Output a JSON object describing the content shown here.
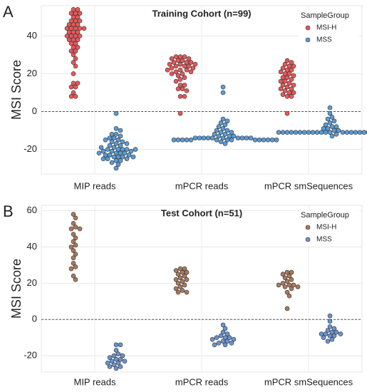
{
  "chart_data": [
    {
      "type": "swarm",
      "panel": "A",
      "title": "Training Cohort (n=99)",
      "y_label": "MSI Score",
      "legend_title": "SampleGroup",
      "categories": [
        "MIP reads",
        "mPCR reads",
        "mPCR smSequences"
      ],
      "ylim": [
        -33,
        56
      ],
      "yticks": [
        -20,
        0,
        20,
        40
      ],
      "grid": true,
      "reference_line": 0,
      "legend": "top-right",
      "series": [
        {
          "name": "MSI-H",
          "color": "#e8575a",
          "values": [
            [
              54,
              54,
              52,
              52,
              52,
              50,
              50,
              48,
              48,
              48,
              46,
              46,
              46,
              44,
              44,
              44,
              44,
              44,
              42,
              42,
              42,
              40,
              40,
              40,
              40,
              38,
              38,
              38,
              36,
              36,
              34,
              34,
              32,
              32,
              30,
              28,
              26,
              24,
              20,
              15,
              15,
              13,
              13,
              10,
              8,
              8
            ],
            [
              29,
              29,
              29,
              28,
              28,
              27,
              27,
              26,
              26,
              26,
              25,
              25,
              25,
              24,
              24,
              24,
              23,
              23,
              22,
              22,
              22,
              21,
              21,
              20,
              20,
              19,
              18,
              17,
              16,
              14,
              14,
              12,
              12,
              11,
              8,
              8,
              -1
            ],
            [
              27,
              26,
              25,
              24,
              24,
              23,
              22,
              22,
              21,
              20,
              20,
              19,
              18,
              18,
              17,
              16,
              16,
              15,
              14,
              14,
              13,
              12,
              12,
              11,
              10,
              10,
              9,
              8,
              8,
              -1
            ]
          ]
        },
        {
          "name": "MSS",
          "color": "#5b9bd5",
          "values": [
            [
              -1,
              -9,
              -10,
              -12,
              -12,
              -13,
              -14,
              -14,
              -15,
              -16,
              -16,
              -17,
              -18,
              -18,
              -19,
              -20,
              -20,
              -20,
              -20,
              -21,
              -21,
              -22,
              -22,
              -22,
              -23,
              -23,
              -24,
              -24,
              -24,
              -25,
              -25,
              -26,
              -26,
              -27,
              -28,
              -30,
              -21,
              -23,
              -19,
              -17,
              -15,
              -25,
              -22,
              -20,
              -24
            ],
            [
              13,
              10,
              -4,
              -5,
              -6,
              -7,
              -8,
              -9,
              -10,
              -10,
              -11,
              -11,
              -12,
              -12,
              -13,
              -13,
              -13,
              -14,
              -14,
              -14,
              -14,
              -14,
              -14,
              -14,
              -14,
              -14,
              -14,
              -15,
              -15,
              -15,
              -15,
              -15,
              -15,
              -15,
              -15,
              -15,
              -15,
              -15,
              -15,
              -15,
              -15,
              -16,
              -17
            ],
            [
              2,
              -1,
              -3,
              -4,
              -5,
              -6,
              -7,
              -8,
              -8,
              -9,
              -9,
              -10,
              -10,
              -11,
              -11,
              -11,
              -11,
              -11,
              -11,
              -11,
              -11,
              -11,
              -11,
              -11,
              -11,
              -11,
              -11,
              -11,
              -11,
              -11,
              -11,
              -11,
              -11,
              -11,
              -11,
              -11,
              -12,
              -12,
              -13
            ]
          ]
        }
      ]
    },
    {
      "type": "swarm",
      "panel": "B",
      "title": "Test Cohort (n=51)",
      "y_label": "MSI Score",
      "legend_title": "SampleGroup",
      "categories": [
        "MIP reads",
        "mPCR reads",
        "mPCR smSequences"
      ],
      "ylim": [
        -29,
        63
      ],
      "yticks": [
        -20,
        0,
        20,
        40,
        60
      ],
      "grid": true,
      "reference_line": 0,
      "legend": "top-right",
      "series": [
        {
          "name": "MSI-H",
          "color": "#a87a5c",
          "values": [
            [
              58,
              56,
              53,
              51,
              50,
              50,
              47,
              45,
              43,
              41,
              40,
              38,
              36,
              34,
              31,
              29,
              28,
              24,
              22
            ],
            [
              28,
              28,
              27,
              26,
              26,
              25,
              24,
              23,
              22,
              22,
              21,
              20,
              19,
              18,
              17,
              16,
              15,
              15
            ],
            [
              26,
              26,
              25,
              24,
              23,
              22,
              21,
              20,
              19,
              19,
              19,
              18,
              18,
              17,
              15,
              13,
              6
            ]
          ]
        },
        {
          "name": "MSS",
          "color": "#6a93cf",
          "values": [
            [
              -14,
              -14,
              -17,
              -19,
              -20,
              -20,
              -21,
              -22,
              -22,
              -23,
              -23,
              -24,
              -24,
              -25,
              -26,
              -26,
              -27
            ],
            [
              -3,
              -5,
              -7,
              -8,
              -9,
              -10,
              -10,
              -10,
              -11,
              -11,
              -12,
              -12,
              -13,
              -13,
              -14,
              -14
            ],
            [
              2,
              -1,
              -4,
              -5,
              -6,
              -7,
              -7,
              -8,
              -8,
              -8,
              -9,
              -9,
              -10,
              -11,
              -12
            ]
          ]
        }
      ]
    }
  ]
}
